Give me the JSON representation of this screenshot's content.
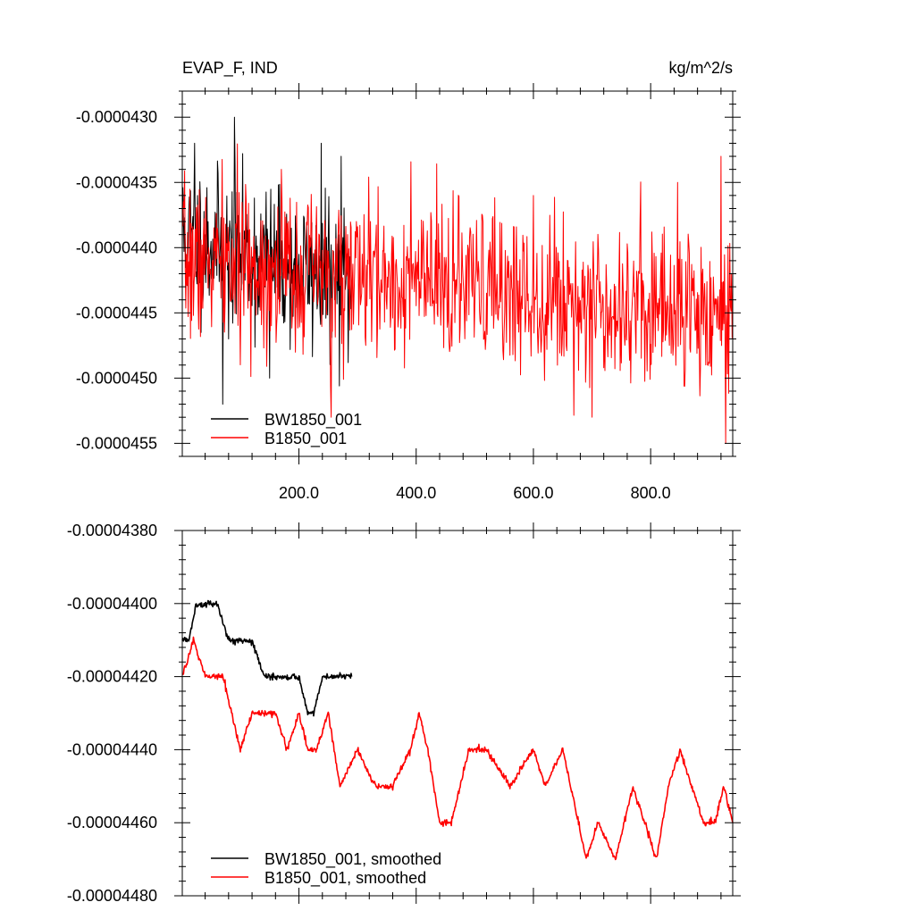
{
  "chart_data": [
    {
      "type": "line",
      "title": "EVAP_F, IND",
      "units_label": "kg/m^2/s",
      "xlim": [
        1,
        940
      ],
      "ylim": [
        -4.56e-05,
        -4.28e-05
      ],
      "grid": false,
      "legend_position": "bottom-left",
      "xticks": [
        {
          "value": 200,
          "label": "200.0"
        },
        {
          "value": 400,
          "label": "400.0"
        },
        {
          "value": 600,
          "label": "600.0"
        },
        {
          "value": 800,
          "label": "800.0"
        }
      ],
      "yticks": [
        {
          "value": -4.3e-05,
          "label": "-0.0000430"
        },
        {
          "value": -4.35e-05,
          "label": "-0.0000435"
        },
        {
          "value": -4.4e-05,
          "label": "-0.0000440"
        },
        {
          "value": -4.45e-05,
          "label": "-0.0000445"
        },
        {
          "value": -4.5e-05,
          "label": "-0.0000450"
        },
        {
          "value": -4.55e-05,
          "label": "-0.0000455"
        }
      ],
      "series": [
        {
          "name": "BW1850_001",
          "color": "#000000",
          "gen": {
            "x_start": 1,
            "x_end": 290,
            "mean_start": -4.39e-05,
            "mean_end": -4.43e-05,
            "noise": 2.8e-07,
            "seed": 11,
            "extremes": [
              [
                22,
                -4.32e-05
              ],
              [
                70,
                -4.52e-05
              ],
              [
                90,
                -4.3e-05
              ],
              [
                150,
                -4.5e-05
              ],
              [
                238,
                -4.32e-05
              ],
              [
                272,
                -4.33e-05
              ],
              [
                80,
                -4.47e-05
              ]
            ]
          }
        },
        {
          "name": "B1850_001",
          "color": "#ff0000",
          "gen": {
            "x_start": 1,
            "x_end": 940,
            "mean_start": -4.41e-05,
            "mean_end": -4.45e-05,
            "noise": 3e-07,
            "seed": 7,
            "extremes": [
              [
                170,
                -4.34e-05
              ],
              [
                255,
                -4.53e-05
              ],
              [
                600,
                -4.36e-05
              ],
              [
                700,
                -4.53e-05
              ],
              [
                846,
                -4.35e-05
              ],
              [
                920,
                -4.33e-05
              ],
              [
                928,
                -4.55e-05
              ]
            ]
          }
        }
      ]
    },
    {
      "type": "line",
      "title": "",
      "xlim": [
        1,
        940
      ],
      "ylim": [
        -4.48e-05,
        -4.38e-05
      ],
      "grid": false,
      "legend_position": "bottom-left",
      "yticks": [
        {
          "value": -4.38e-05,
          "label": "-0.00004380"
        },
        {
          "value": -4.4e-05,
          "label": "-0.00004400"
        },
        {
          "value": -4.42e-05,
          "label": "-0.00004420"
        },
        {
          "value": -4.44e-05,
          "label": "-0.00004440"
        },
        {
          "value": -4.46e-05,
          "label": "-0.00004460"
        },
        {
          "value": -4.48e-05,
          "label": "-0.00004480"
        }
      ],
      "series": [
        {
          "name": "BW1850_001, smoothed",
          "color": "#000000",
          "points": [
            [
              1,
              -4.41e-05
            ],
            [
              12,
              -4.41e-05
            ],
            [
              25,
              -4.4e-05
            ],
            [
              40,
              -4.4e-05
            ],
            [
              60,
              -4.4e-05
            ],
            [
              80,
              -4.41e-05
            ],
            [
              100,
              -4.41e-05
            ],
            [
              120,
              -4.41e-05
            ],
            [
              140,
              -4.42e-05
            ],
            [
              160,
              -4.42e-05
            ],
            [
              180,
              -4.42e-05
            ],
            [
              200,
              -4.42e-05
            ],
            [
              215,
              -4.43e-05
            ],
            [
              225,
              -4.43e-05
            ],
            [
              240,
              -4.42e-05
            ],
            [
              255,
              -4.42e-05
            ],
            [
              270,
              -4.42e-05
            ],
            [
              290,
              -4.42e-05
            ]
          ],
          "gen": {
            "noise": 4.5e-09,
            "seed": 5
          }
        },
        {
          "name": "B1850_001, smoothed",
          "color": "#ff0000",
          "points": [
            [
              1,
              -4.42e-05
            ],
            [
              20,
              -4.41e-05
            ],
            [
              40,
              -4.42e-05
            ],
            [
              70,
              -4.42e-05
            ],
            [
              85,
              -4.43e-05
            ],
            [
              100,
              -4.44e-05
            ],
            [
              120,
              -4.43e-05
            ],
            [
              140,
              -4.43e-05
            ],
            [
              160,
              -4.43e-05
            ],
            [
              180,
              -4.44e-05
            ],
            [
              200,
              -4.43e-05
            ],
            [
              215,
              -4.44e-05
            ],
            [
              230,
              -4.44e-05
            ],
            [
              250,
              -4.43e-05
            ],
            [
              270,
              -4.45e-05
            ],
            [
              300,
              -4.44e-05
            ],
            [
              330,
              -4.45e-05
            ],
            [
              360,
              -4.45e-05
            ],
            [
              390,
              -4.44e-05
            ],
            [
              405,
              -4.43e-05
            ],
            [
              420,
              -4.44e-05
            ],
            [
              440,
              -4.46e-05
            ],
            [
              460,
              -4.46e-05
            ],
            [
              490,
              -4.44e-05
            ],
            [
              520,
              -4.44e-05
            ],
            [
              560,
              -4.45e-05
            ],
            [
              600,
              -4.44e-05
            ],
            [
              620,
              -4.45e-05
            ],
            [
              650,
              -4.44e-05
            ],
            [
              690,
              -4.47e-05
            ],
            [
              710,
              -4.46e-05
            ],
            [
              740,
              -4.47e-05
            ],
            [
              770,
              -4.45e-05
            ],
            [
              790,
              -4.46e-05
            ],
            [
              810,
              -4.47e-05
            ],
            [
              830,
              -4.45e-05
            ],
            [
              850,
              -4.44e-05
            ],
            [
              870,
              -4.45e-05
            ],
            [
              890,
              -4.46e-05
            ],
            [
              910,
              -4.46e-05
            ],
            [
              925,
              -4.45e-05
            ],
            [
              940,
              -4.46e-05
            ]
          ],
          "gen": {
            "noise": 4.5e-09,
            "seed": 9
          }
        }
      ]
    }
  ]
}
